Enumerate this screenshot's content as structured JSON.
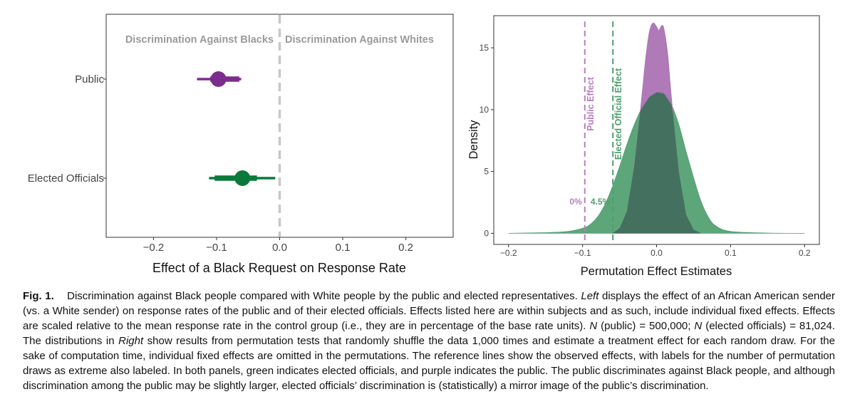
{
  "chart_data": [
    {
      "type": "scatter",
      "panel": "left",
      "xlabel": "Effect of a Black Request on Response Rate",
      "ylabel": "",
      "xlim": [
        -0.275,
        0.275
      ],
      "xticks": [
        -0.2,
        -0.1,
        0.0,
        0.1,
        0.2
      ],
      "xtick_labels": [
        "−0.2",
        "−0.1",
        "0.0",
        "0.1",
        "0.2"
      ],
      "categories": [
        "Public",
        "Elected Officials"
      ],
      "annotations": [
        "Discrimination Against Blacks",
        "Discrimination Against Whites"
      ],
      "reference_line": 0.0,
      "series": [
        {
          "name": "Public",
          "estimate": -0.097,
          "ci90": [
            -0.11,
            -0.064
          ],
          "ci95": [
            -0.131,
            -0.061
          ],
          "color": "#7b2d8e"
        },
        {
          "name": "Elected Officials",
          "estimate": -0.059,
          "ci90": [
            -0.103,
            -0.036
          ],
          "ci95": [
            -0.112,
            -0.007
          ],
          "color": "#0a7a3a"
        }
      ]
    },
    {
      "type": "area",
      "panel": "right",
      "xlabel": "Permutation Effect Estimates",
      "ylabel": "Density",
      "xlim": [
        -0.22,
        0.22
      ],
      "ylim": [
        -0.9,
        17.6
      ],
      "xticks": [
        -0.2,
        -0.1,
        0.0,
        0.1,
        0.2
      ],
      "xtick_labels": [
        "−0.2",
        "−0.1",
        "0.0",
        "0.1",
        "0.2"
      ],
      "yticks": [
        0,
        5,
        10,
        15
      ],
      "ytick_labels": [
        "0",
        "5",
        "10",
        "15"
      ],
      "series": [
        {
          "name": "Elected Officials",
          "color": "#4f9e6e",
          "x": [
            -0.2,
            -0.15,
            -0.12,
            -0.1,
            -0.09,
            -0.08,
            -0.07,
            -0.06,
            -0.05,
            -0.04,
            -0.03,
            -0.02,
            -0.01,
            0.0,
            0.01,
            0.02,
            0.03,
            0.04,
            0.05,
            0.06,
            0.07,
            0.08,
            0.1,
            0.15,
            0.2
          ],
          "y": [
            0,
            0.05,
            0.15,
            0.4,
            0.7,
            1.3,
            2.3,
            3.7,
            5.4,
            7.2,
            8.8,
            10.1,
            11.0,
            11.4,
            11.3,
            10.4,
            8.8,
            6.6,
            4.5,
            2.6,
            1.3,
            0.6,
            0.15,
            0.02,
            0
          ]
        },
        {
          "name": "Public",
          "color": "#a86fb1",
          "x": [
            -0.06,
            -0.05,
            -0.04,
            -0.03,
            -0.02,
            -0.015,
            -0.01,
            -0.005,
            0.0,
            0.003,
            0.007,
            0.01,
            0.015,
            0.02,
            0.03,
            0.04,
            0.05,
            0.06
          ],
          "y": [
            0,
            0.4,
            1.8,
            5.5,
            11.0,
            14.0,
            16.2,
            17.0,
            16.7,
            16.4,
            16.8,
            16.5,
            14.5,
            11.0,
            5.0,
            1.5,
            0.3,
            0
          ]
        }
      ],
      "reference_lines": [
        {
          "label": "Public Effect",
          "x": -0.097,
          "color": "#b77fbf",
          "count_label": "0%"
        },
        {
          "label": "Elected Official Effect",
          "x": -0.059,
          "color": "#4f9e6e",
          "count_label": "4.5%"
        }
      ]
    }
  ],
  "caption": {
    "fig_label": "Fig. 1.",
    "text_1": "Discrimination against Black people compared with White people by the public and elected representatives. ",
    "left_word": "Left",
    "text_2": " displays the effect of an African American sender (vs. a White sender) on response rates of the public and of their elected officials. Effects listed here are within subjects and as such, include individual fixed effects. Effects are scaled relative to the mean response rate in the control group (i.e., they are in percentage of the base rate units). ",
    "n1": "N",
    "text_3": " (public) = 500,000; ",
    "n2": "N",
    "text_4": " (elected officials) = 81,024. The distributions in ",
    "right_word": "Right",
    "text_5": " show results from permutation tests that randomly shuffle the data 1,000 times and estimate a treatment effect for each random draw. For the sake of computation time, individual fixed effects are omitted in the permutations. The reference lines show the observed effects, with labels for the number of permutation draws as extreme also labeled. In both panels, green indicates elected officials, and purple indicates the public. The public discriminates against Black people, and although discrimination among the public may be slightly larger, elected officials’ discrimination is (statistically) a mirror image of the public’s discrimination."
  }
}
